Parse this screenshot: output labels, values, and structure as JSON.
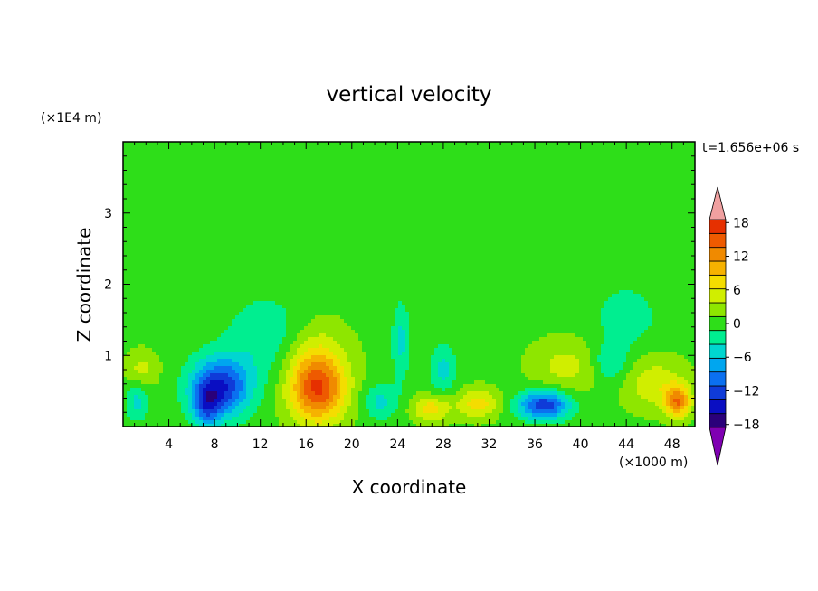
{
  "chart_data": {
    "type": "heatmap",
    "title": "vertical velocity",
    "xlabel": "X coordinate",
    "ylabel": "Z coordinate",
    "x_unit": "(×1000 m)",
    "y_unit": "(×1E4 m)",
    "time_label": "t=1.656e+06 s",
    "xlim": [
      0,
      50
    ],
    "ylim": [
      0,
      4
    ],
    "x_ticks": [
      4,
      8,
      12,
      16,
      20,
      24,
      28,
      32,
      36,
      40,
      44,
      48
    ],
    "x_tick_labels": [
      "4",
      "8",
      "12",
      "16",
      "20",
      "24",
      "28",
      "32",
      "36",
      "40",
      "44",
      "48"
    ],
    "y_ticks": [
      1,
      2,
      3
    ],
    "y_tick_labels": [
      "1",
      "2",
      "3"
    ],
    "colorbar": {
      "min": -21,
      "max": 21,
      "step": 3,
      "tick_values": [
        18,
        12,
        6,
        0,
        -6,
        -12,
        -18
      ],
      "tick_labels": [
        "18",
        "12",
        "6",
        "0",
        "−6",
        "−12",
        "−18"
      ],
      "colors": [
        "#7f00b2",
        "#2a007a",
        "#0a0ec2",
        "#0f3bd8",
        "#0b70f0",
        "#00a6ef",
        "#00d6d0",
        "#00ee90",
        "#2ede19",
        "#8ee600",
        "#d0ee00",
        "#f4dd00",
        "#f6b200",
        "#f08a00",
        "#ee5a00",
        "#e63000",
        "#f0a0a0"
      ]
    },
    "features": [
      {
        "x": 8.5,
        "z": 0.55,
        "value": -14,
        "sx": 2.6,
        "sz": 0.42
      },
      {
        "x": 7.3,
        "z": 0.28,
        "value": -8,
        "sx": 1.2,
        "sz": 0.3
      },
      {
        "x": 17.0,
        "z": 0.5,
        "value": 14,
        "sx": 2.4,
        "sz": 0.45
      },
      {
        "x": 16.8,
        "z": 0.95,
        "value": 5,
        "sx": 2.8,
        "sz": 0.5
      },
      {
        "x": 36.8,
        "z": 0.3,
        "value": -14,
        "sx": 2.2,
        "sz": 0.2
      },
      {
        "x": 48.5,
        "z": 0.35,
        "value": 12,
        "sx": 1.1,
        "sz": 0.22
      },
      {
        "x": 46.5,
        "z": 0.6,
        "value": 5,
        "sx": 2.6,
        "sz": 0.35
      },
      {
        "x": 27.0,
        "z": 0.25,
        "value": 7,
        "sx": 1.6,
        "sz": 0.18
      },
      {
        "x": 31.0,
        "z": 0.32,
        "value": 7,
        "sx": 1.8,
        "sz": 0.2
      },
      {
        "x": 38.8,
        "z": 0.85,
        "value": 4,
        "sx": 3.0,
        "sz": 0.35
      },
      {
        "x": 1.2,
        "z": 0.35,
        "value": -5,
        "sx": 1.0,
        "sz": 0.28
      },
      {
        "x": 1.6,
        "z": 0.8,
        "value": 4,
        "sx": 1.4,
        "sz": 0.25
      },
      {
        "x": 42.6,
        "z": 0.9,
        "value": -5,
        "sx": 1.6,
        "sz": 0.28
      },
      {
        "x": 24.3,
        "z": 1.2,
        "value": -5,
        "sx": 0.8,
        "sz": 0.55
      },
      {
        "x": 22.5,
        "z": 0.35,
        "value": -5,
        "sx": 1.5,
        "sz": 0.25
      },
      {
        "x": 28.0,
        "z": 0.8,
        "value": -5,
        "sx": 1.2,
        "sz": 0.35
      },
      {
        "x": 12.5,
        "z": 1.25,
        "value": -4,
        "sx": 3.5,
        "sz": 0.6
      },
      {
        "x": 44.0,
        "z": 1.55,
        "value": -4,
        "sx": 2.5,
        "sz": 0.4
      }
    ]
  }
}
